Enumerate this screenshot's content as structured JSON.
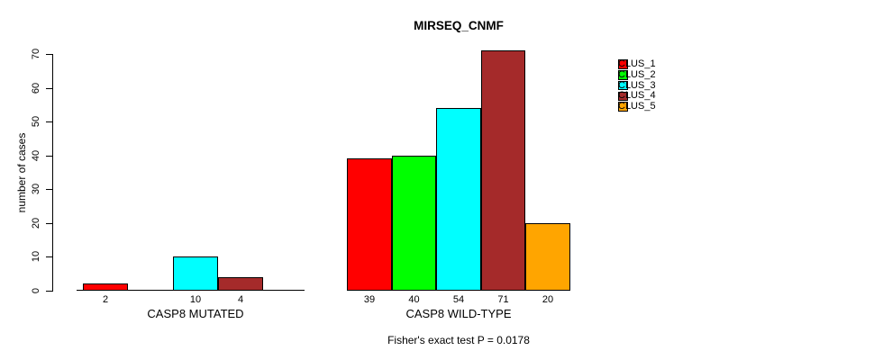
{
  "chart_data": {
    "type": "bar",
    "title": "MIRSEQ_CNMF",
    "ylabel": "number of cases",
    "xlabel": "",
    "ylim": [
      0,
      70
    ],
    "yticks": [
      0,
      10,
      20,
      30,
      40,
      50,
      60,
      70
    ],
    "grid": false,
    "legend": {
      "position": "right",
      "entries": [
        {
          "label": "CLUS_1",
          "color": "#FF0000"
        },
        {
          "label": "CLUS_2",
          "color": "#00FF00"
        },
        {
          "label": "CLUS_3",
          "color": "#00FFFF"
        },
        {
          "label": "CLUS_4",
          "color": "#A52A2A"
        },
        {
          "label": "CLUS_5",
          "color": "#FFA500"
        }
      ]
    },
    "groups": [
      {
        "label": "CASP8 MUTATED",
        "values": [
          2,
          0,
          10,
          4,
          0
        ]
      },
      {
        "label": "CASP8 WILD-TYPE",
        "values": [
          39,
          40,
          54,
          71,
          20
        ]
      }
    ],
    "bar_value_labels": [
      [
        "2",
        "",
        "10",
        "4",
        ""
      ],
      [
        "39",
        "40",
        "54",
        "71",
        "20"
      ]
    ],
    "footnote": "Fisher's exact test P = 0.0178"
  }
}
